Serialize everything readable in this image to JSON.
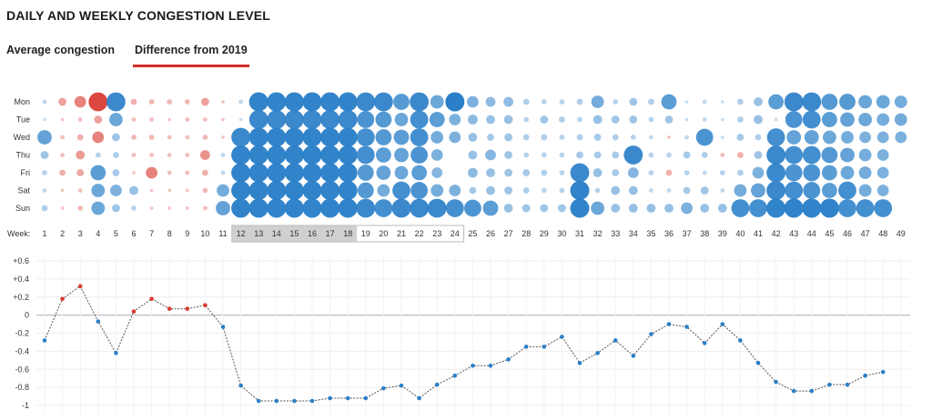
{
  "title": "DAILY AND WEEKLY CONGESTION LEVEL",
  "tabs": [
    {
      "label": "Average congestion",
      "active": false
    },
    {
      "label": "Difference from 2019",
      "active": true
    }
  ],
  "colors": {
    "positive": "#d93a30",
    "negative": "#2a7fc8",
    "highlight": "#d0d0d0",
    "line": "#555555"
  },
  "chart_data": [
    {
      "type": "heatmap",
      "subtype": "bubble-matrix",
      "days": [
        "Mon",
        "Tue",
        "Wed",
        "Thu",
        "Fri",
        "Sat",
        "Sun"
      ],
      "week_axis_label": "Week:",
      "weeks": [
        1,
        2,
        3,
        4,
        5,
        6,
        7,
        8,
        9,
        10,
        11,
        12,
        13,
        14,
        15,
        16,
        17,
        18,
        19,
        20,
        21,
        22,
        23,
        24,
        25,
        26,
        27,
        28,
        29,
        30,
        31,
        32,
        33,
        34,
        35,
        36,
        37,
        38,
        39,
        40,
        41,
        42,
        43,
        44,
        45,
        46,
        47,
        48,
        49
      ],
      "highlighted_weeks": [
        12,
        18
      ],
      "values": {
        "Mon": [
          -0.1,
          0.3,
          0.5,
          0.9,
          -0.9,
          0.2,
          0.15,
          0.15,
          0.15,
          0.3,
          0.05,
          -0.1,
          -0.95,
          -0.95,
          -0.95,
          -0.95,
          -0.95,
          -0.95,
          -0.9,
          -0.9,
          -0.75,
          -0.9,
          -0.6,
          -1.0,
          -0.5,
          -0.4,
          -0.4,
          -0.2,
          -0.15,
          -0.15,
          -0.2,
          -0.55,
          -0.15,
          -0.3,
          -0.2,
          -0.7,
          -0.05,
          -0.1,
          -0.05,
          -0.2,
          -0.35,
          -0.7,
          -0.9,
          -0.9,
          -0.75,
          -0.75,
          -0.6,
          -0.6,
          -0.55
        ],
        "Tue": [
          -0.05,
          0.05,
          0.1,
          0.3,
          -0.6,
          0.1,
          0.1,
          0.05,
          0.1,
          0.1,
          0.05,
          -0.05,
          -0.9,
          -0.9,
          -0.9,
          -0.9,
          -0.9,
          -0.9,
          -0.8,
          -0.75,
          -0.6,
          -0.85,
          -0.7,
          -0.5,
          -0.4,
          -0.35,
          -0.35,
          -0.15,
          -0.3,
          -0.2,
          -0.15,
          -0.35,
          -0.3,
          -0.3,
          -0.15,
          -0.3,
          -0.05,
          -0.1,
          -0.05,
          -0.2,
          -0.35,
          -0.05,
          -0.8,
          -0.85,
          -0.7,
          -0.65,
          -0.6,
          -0.55,
          -0.55
        ],
        "Wed": [
          -0.65,
          0.1,
          0.2,
          0.5,
          -0.3,
          0.15,
          0.15,
          0.1,
          0.1,
          0.15,
          0.05,
          -0.9,
          -0.95,
          -0.95,
          -0.95,
          -0.95,
          -0.95,
          -0.95,
          -0.85,
          -0.75,
          -0.7,
          -0.85,
          -0.55,
          -0.5,
          -0.35,
          -0.25,
          -0.3,
          -0.2,
          -0.2,
          -0.15,
          -0.2,
          -0.25,
          -0.2,
          -0.15,
          -0.1,
          0.05,
          -0.1,
          -0.8,
          -0.05,
          -0.25,
          -0.2,
          -0.85,
          -0.65,
          -0.65,
          -0.6,
          -0.55,
          -0.5,
          -0.5,
          -0.5
        ],
        "Thu": [
          -0.3,
          0.1,
          0.35,
          -0.15,
          -0.2,
          0.1,
          0.1,
          0.1,
          0.1,
          0.4,
          -0.1,
          -0.95,
          -0.95,
          -0.95,
          -0.95,
          -0.95,
          -0.95,
          -0.95,
          -0.85,
          -0.7,
          -0.65,
          -0.8,
          -0.5,
          0.0,
          -0.35,
          -0.45,
          -0.3,
          -0.15,
          -0.15,
          -0.15,
          -0.25,
          -0.25,
          -0.25,
          -0.9,
          -0.15,
          -0.15,
          -0.25,
          -0.2,
          0.1,
          0.2,
          -0.3,
          -0.9,
          -0.85,
          -0.85,
          -0.75,
          -0.65,
          -0.55,
          -0.5,
          0.0
        ],
        "Fri": [
          -0.15,
          0.2,
          0.25,
          -0.7,
          -0.25,
          0.05,
          0.5,
          0.1,
          0.1,
          0.2,
          -0.1,
          -0.95,
          -0.95,
          -0.95,
          -0.95,
          -0.95,
          -0.95,
          -0.95,
          -0.75,
          -0.65,
          -0.6,
          -0.7,
          -0.45,
          0.0,
          -0.4,
          -0.35,
          -0.3,
          -0.25,
          -0.2,
          -0.15,
          -0.9,
          -0.35,
          -0.25,
          -0.45,
          -0.15,
          0.2,
          -0.15,
          -0.1,
          -0.15,
          -0.2,
          -0.5,
          -0.9,
          -0.8,
          -0.8,
          -0.7,
          -0.6,
          -0.55,
          -0.5,
          0.0
        ],
        "Sat": [
          -0.1,
          0.05,
          0.1,
          -0.6,
          -0.5,
          -0.35,
          0.05,
          0.05,
          0.05,
          0.15,
          -0.55,
          -0.95,
          -0.95,
          -0.95,
          -0.95,
          -0.95,
          -0.95,
          -0.95,
          -0.75,
          -0.55,
          -0.85,
          -0.8,
          -0.55,
          -0.5,
          -0.25,
          -0.35,
          -0.3,
          -0.2,
          -0.15,
          -0.15,
          -0.95,
          -0.15,
          -0.35,
          -0.35,
          -0.1,
          -0.1,
          -0.25,
          -0.3,
          -0.1,
          -0.55,
          -0.65,
          -0.9,
          -0.85,
          -0.8,
          -0.7,
          -0.85,
          -0.55,
          -0.5,
          0.0
        ],
        "Sun": [
          -0.2,
          0.05,
          0.15,
          -0.6,
          -0.3,
          -0.15,
          0.05,
          0.05,
          0.05,
          0.1,
          -0.65,
          -0.95,
          -0.95,
          -0.95,
          -0.95,
          -0.95,
          -0.95,
          -0.95,
          -0.9,
          -0.85,
          -0.9,
          -0.9,
          -0.9,
          -0.85,
          -0.8,
          -0.7,
          -0.35,
          -0.3,
          -0.3,
          -0.3,
          -0.95,
          -0.6,
          -0.35,
          -0.35,
          -0.35,
          -0.35,
          -0.5,
          -0.35,
          -0.35,
          -0.85,
          -0.85,
          -0.95,
          -0.95,
          -0.95,
          -0.95,
          -0.85,
          -0.85,
          -0.85,
          0.0
        ]
      }
    },
    {
      "type": "line",
      "ylim": [
        -1,
        0.6
      ],
      "y_ticks": [
        "+0.6",
        "+0.4",
        "+0.2",
        "0",
        "-0.2",
        "-0.4",
        "-0.6",
        "-0.8",
        "-1"
      ],
      "x": [
        1,
        2,
        3,
        4,
        5,
        6,
        7,
        8,
        9,
        10,
        11,
        12,
        13,
        14,
        15,
        16,
        17,
        18,
        19,
        20,
        21,
        22,
        23,
        24,
        25,
        26,
        27,
        28,
        29,
        30,
        31,
        32,
        33,
        34,
        35,
        36,
        37,
        38,
        39,
        40,
        41,
        42,
        43,
        44,
        45,
        46,
        47,
        48
      ],
      "values": [
        -0.28,
        0.18,
        0.32,
        -0.07,
        -0.42,
        0.04,
        0.18,
        0.07,
        0.07,
        0.11,
        -0.13,
        -0.78,
        -0.95,
        -0.95,
        -0.95,
        -0.95,
        -0.92,
        -0.92,
        -0.92,
        -0.81,
        -0.78,
        -0.92,
        -0.77,
        -0.67,
        -0.56,
        -0.56,
        -0.49,
        -0.35,
        -0.35,
        -0.24,
        -0.53,
        -0.42,
        -0.28,
        -0.45,
        -0.21,
        -0.1,
        -0.13,
        -0.31,
        -0.1,
        -0.28,
        -0.53,
        -0.74,
        -0.84,
        -0.84,
        -0.77,
        -0.77,
        -0.67,
        -0.63
      ]
    }
  ]
}
